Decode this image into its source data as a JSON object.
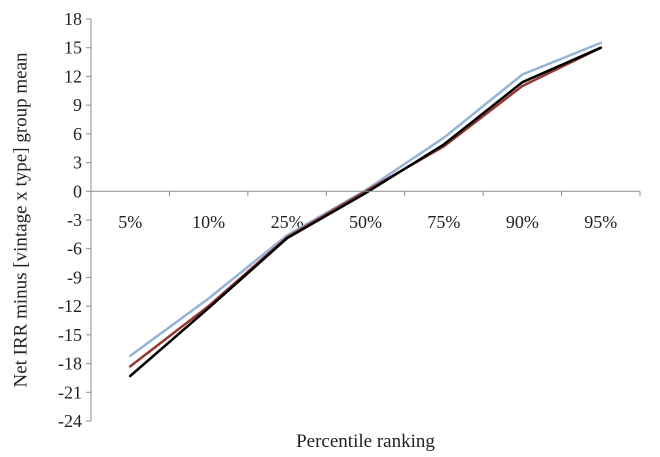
{
  "chart_data": {
    "type": "line",
    "title": "",
    "xlabel": "Percentile ranking",
    "ylabel": "Net IRR minus [vintage x type] group mean",
    "categories": [
      "5%",
      "10%",
      "25%",
      "50%",
      "75%",
      "90%",
      "95%"
    ],
    "ylim": [
      -24,
      18
    ],
    "yticks": [
      18,
      15,
      12,
      9,
      6,
      3,
      0,
      -3,
      -6,
      -9,
      -12,
      -15,
      -18,
      -21,
      -24
    ],
    "grid": false,
    "legend": "none",
    "series": [
      {
        "color": "#95b3d7",
        "values": [
          -17.2,
          -11.2,
          -4.6,
          0.1,
          5.6,
          12.2,
          15.5
        ]
      },
      {
        "color": "#953735",
        "values": [
          -18.3,
          -12.0,
          -4.8,
          0.0,
          4.7,
          11.0,
          15.0
        ]
      },
      {
        "color": "#000000",
        "values": [
          -19.3,
          -12.2,
          -4.9,
          -0.2,
          4.9,
          11.4,
          15.0
        ]
      }
    ]
  }
}
